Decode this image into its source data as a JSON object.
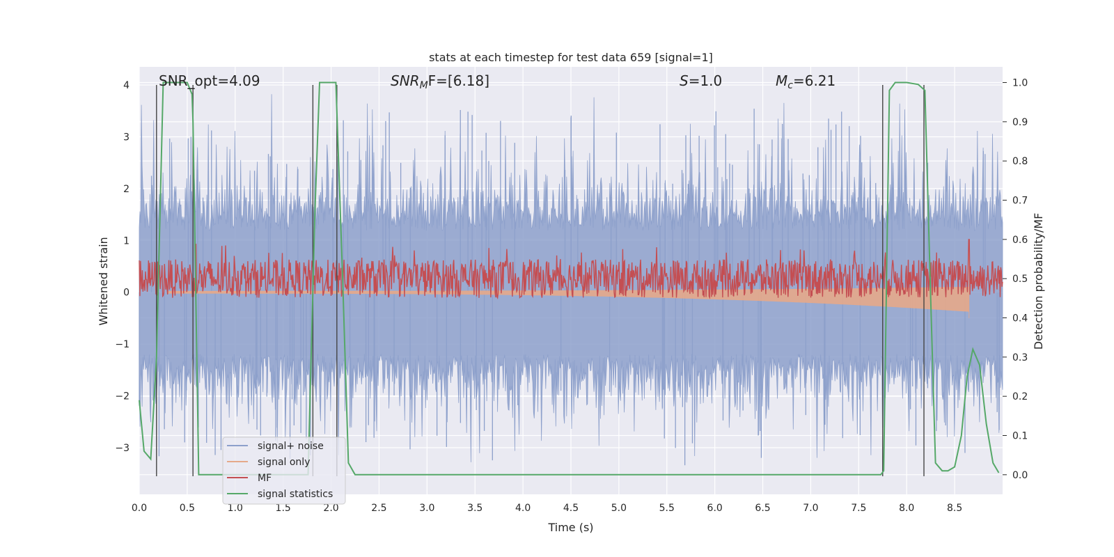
{
  "chart_data": {
    "type": "line",
    "title": "stats at each timestep for test data 659 [signal=1]",
    "xlabel": "Time (s)",
    "ylabel": "Whitened strain",
    "ylabel_right": "Detection probability/MF",
    "xlim": [
      0.0,
      9.0
    ],
    "ylim": [
      -3.9,
      4.35
    ],
    "ylim_right": [
      -0.05,
      1.04
    ],
    "xticks": [
      "0.0",
      "0.5",
      "1.0",
      "1.5",
      "2.0",
      "2.5",
      "3.0",
      "3.5",
      "4.0",
      "4.5",
      "5.0",
      "5.5",
      "6.0",
      "6.5",
      "7.0",
      "7.5",
      "8.0",
      "8.5"
    ],
    "yticks": [
      "4",
      "3",
      "2",
      "1",
      "0",
      "−1",
      "−2",
      "−3"
    ],
    "yticks_right": [
      "1.0",
      "0.9",
      "0.8",
      "0.7",
      "0.6",
      "0.5",
      "0.4",
      "0.3",
      "0.2",
      "0.1",
      "0.0"
    ],
    "grid": true,
    "legend_position": "lower-left",
    "annotations": {
      "snr_opt": "SNR_opt=4.09",
      "snr_mf": "SNR",
      "snr_mf_sub": "M",
      "snr_mf_rest": "F=[6.18]",
      "s_label": "S",
      "s_value": "=1.0",
      "mc_label": "M",
      "mc_sub": "c",
      "mc_value": "=6.21"
    },
    "series": [
      {
        "name": "signal+ noise",
        "color": "#8da0cb",
        "style": "noise-band",
        "description_values": {
          "center": 0.0,
          "typical_amplitude": 1.4,
          "max_peak": 4.0,
          "min_peak": -3.6
        }
      },
      {
        "name": "signal only",
        "color": "#e5a98a",
        "style": "chirp",
        "chirp_end_time": 8.65,
        "chirp_peak": 1.0,
        "chirp_trough": -0.5
      },
      {
        "name": "MF",
        "color": "#c44e52",
        "axis": "right",
        "baseline": 0.5,
        "band": [
          0.48,
          0.55
        ],
        "peak": {
          "x": 8.65,
          "y": 0.6
        }
      },
      {
        "name": "signal statistics",
        "color": "#55a868",
        "axis": "right",
        "x": [
          0.0,
          0.05,
          0.12,
          0.18,
          0.25,
          0.3,
          0.5,
          0.55,
          0.56,
          0.62,
          0.7,
          1.5,
          1.76,
          1.83,
          1.88,
          2.0,
          2.05,
          2.12,
          2.18,
          2.25,
          7.65,
          7.73,
          7.76,
          7.82,
          7.88,
          8.0,
          8.12,
          8.19,
          8.25,
          8.3,
          8.37,
          8.43,
          8.5,
          8.57,
          8.63,
          8.69,
          8.76,
          8.83,
          8.9,
          8.96
        ],
        "y": [
          0.19,
          0.06,
          0.04,
          0.3,
          1.0,
          1.0,
          1.0,
          0.97,
          0.9,
          0.0,
          0.0,
          0.0,
          0.0,
          0.66,
          1.0,
          1.0,
          1.0,
          0.5,
          0.03,
          0.0,
          0.0,
          0.0,
          0.01,
          0.98,
          1.0,
          1.0,
          0.995,
          0.98,
          0.45,
          0.03,
          0.01,
          0.01,
          0.02,
          0.1,
          0.25,
          0.32,
          0.28,
          0.13,
          0.03,
          0.005
        ]
      }
    ],
    "vlines": [
      {
        "x": 0.18,
        "y": [
          -3.55,
          4.0
        ]
      },
      {
        "x": 0.56,
        "y": [
          -3.55,
          4.0
        ]
      },
      {
        "x": 1.81,
        "y": [
          -3.55,
          4.0
        ]
      },
      {
        "x": 2.06,
        "y": [
          -3.55,
          4.0
        ]
      },
      {
        "x": 7.75,
        "y": [
          -3.55,
          4.0
        ]
      },
      {
        "x": 8.18,
        "y": [
          -3.55,
          4.0
        ]
      }
    ]
  }
}
